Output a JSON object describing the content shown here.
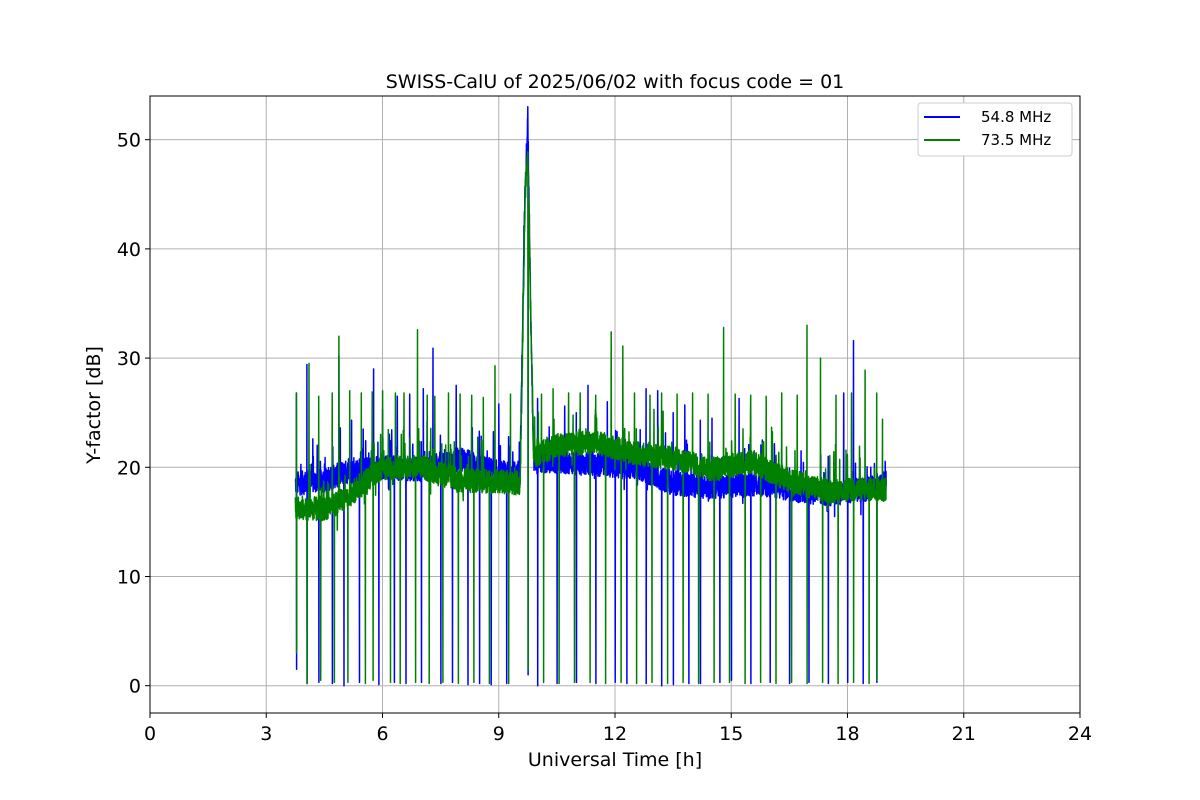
{
  "chart_data": {
    "type": "line",
    "title": "SWISS-CalU of 2025/06/02 with focus code = 01",
    "xlabel": "Universal Time [h]",
    "ylabel": "Y-factor [dB]",
    "xlim": [
      0,
      24
    ],
    "ylim": [
      -2.5,
      54
    ],
    "xticks": [
      0,
      3,
      6,
      9,
      12,
      15,
      18,
      21,
      24
    ],
    "yticks": [
      0,
      10,
      20,
      30,
      40,
      50
    ],
    "grid": true,
    "legend_position": "top-right",
    "colors": {
      "blue": "#0000ff",
      "green": "#008000"
    },
    "series": [
      {
        "name": "54.8 MHz",
        "color": "#0000ff",
        "baseline": [
          [
            3.75,
            18.5
          ],
          [
            4.5,
            18.8
          ],
          [
            5.0,
            19.5
          ],
          [
            5.5,
            19.8
          ],
          [
            6.0,
            20.0
          ],
          [
            7.0,
            19.8
          ],
          [
            8.0,
            20.8
          ],
          [
            9.0,
            19.5
          ],
          [
            9.55,
            19.5
          ],
          [
            9.6,
            29.7
          ],
          [
            9.68,
            46.0
          ],
          [
            9.75,
            51.6
          ],
          [
            9.82,
            35.0
          ],
          [
            9.9,
            20.5
          ],
          [
            10.5,
            20.5
          ],
          [
            11.5,
            20.3
          ],
          [
            12.5,
            20.0
          ],
          [
            13.5,
            18.5
          ],
          [
            14.5,
            18.2
          ],
          [
            15.5,
            18.5
          ],
          [
            16.5,
            18.0
          ],
          [
            17.5,
            17.5
          ],
          [
            18.5,
            18.0
          ],
          [
            19.0,
            18.6
          ]
        ],
        "spikes": [
          [
            3.78,
            26.8
          ],
          [
            4.05,
            29.4
          ],
          [
            4.2,
            22.6
          ],
          [
            4.5,
            20.3
          ],
          [
            4.87,
            30.2
          ],
          [
            5.2,
            24.3
          ],
          [
            5.5,
            23.5
          ],
          [
            5.77,
            29.0
          ],
          [
            6.0,
            25.3
          ],
          [
            6.38,
            26.5
          ],
          [
            6.7,
            26.7
          ],
          [
            7.05,
            27.2
          ],
          [
            7.3,
            30.9
          ],
          [
            7.6,
            21.6
          ],
          [
            7.9,
            27.5
          ],
          [
            8.3,
            25.5
          ],
          [
            8.7,
            21.5
          ],
          [
            9.0,
            25.8
          ],
          [
            9.25,
            22.8
          ],
          [
            10.0,
            26.3
          ],
          [
            10.3,
            23.7
          ],
          [
            10.7,
            25.6
          ],
          [
            11.0,
            25.0
          ],
          [
            11.3,
            27.5
          ],
          [
            11.8,
            26.0
          ],
          [
            12.2,
            24.0
          ],
          [
            12.8,
            27.2
          ],
          [
            13.1,
            27.0
          ],
          [
            13.5,
            25.0
          ],
          [
            13.8,
            25.7
          ],
          [
            14.2,
            24.3
          ],
          [
            14.5,
            24.5
          ],
          [
            15.2,
            26.3
          ],
          [
            15.8,
            22.5
          ],
          [
            16.3,
            22.0
          ],
          [
            16.8,
            21.5
          ],
          [
            17.5,
            21.0
          ],
          [
            17.9,
            26.8
          ],
          [
            18.15,
            31.6
          ],
          [
            18.6,
            20.0
          ]
        ],
        "drops": [
          [
            3.78,
            1.5
          ],
          [
            4.05,
            0.2
          ],
          [
            4.35,
            0.3
          ],
          [
            4.7,
            0.2
          ],
          [
            5.0,
            0.0
          ],
          [
            5.4,
            0.3
          ],
          [
            5.9,
            0.1
          ],
          [
            6.3,
            0.3
          ],
          [
            6.6,
            0.2
          ],
          [
            7.0,
            0.3
          ],
          [
            7.5,
            0.2
          ],
          [
            7.8,
            0.3
          ],
          [
            8.2,
            0.1
          ],
          [
            8.5,
            0.2
          ],
          [
            8.8,
            0.1
          ],
          [
            9.2,
            0.2
          ],
          [
            9.75,
            1.0
          ],
          [
            10.0,
            0.0
          ],
          [
            10.5,
            0.2
          ],
          [
            11.0,
            0.3
          ],
          [
            11.5,
            0.2
          ],
          [
            12.0,
            0.3
          ],
          [
            12.3,
            0.2
          ],
          [
            12.8,
            0.2
          ],
          [
            13.2,
            0.0
          ],
          [
            13.5,
            0.1
          ],
          [
            13.9,
            0.2
          ],
          [
            14.2,
            0.2
          ],
          [
            14.7,
            0.3
          ],
          [
            15.0,
            0.5
          ],
          [
            15.5,
            0.2
          ],
          [
            16.0,
            0.3
          ],
          [
            16.5,
            0.2
          ],
          [
            17.0,
            0.3
          ],
          [
            17.5,
            0.2
          ],
          [
            18.0,
            0.3
          ],
          [
            18.4,
            0.2
          ],
          [
            18.75,
            0.3
          ]
        ]
      },
      {
        "name": "73.5 MHz",
        "color": "#008000",
        "baseline": [
          [
            3.75,
            16.3
          ],
          [
            4.5,
            16.2
          ],
          [
            5.0,
            17.0
          ],
          [
            5.5,
            18.5
          ],
          [
            6.0,
            20.0
          ],
          [
            7.0,
            20.0
          ],
          [
            8.0,
            18.8
          ],
          [
            9.0,
            18.7
          ],
          [
            9.55,
            18.5
          ],
          [
            9.6,
            27.7
          ],
          [
            9.68,
            45.0
          ],
          [
            9.75,
            48.7
          ],
          [
            9.82,
            35.0
          ],
          [
            9.9,
            21.0
          ],
          [
            10.5,
            22.0
          ],
          [
            11.5,
            22.3
          ],
          [
            12.5,
            21.3
          ],
          [
            13.5,
            20.8
          ],
          [
            14.5,
            19.8
          ],
          [
            15.5,
            20.5
          ],
          [
            16.5,
            18.8
          ],
          [
            17.5,
            17.8
          ],
          [
            18.5,
            18.0
          ],
          [
            19.0,
            18.0
          ]
        ],
        "spikes": [
          [
            3.78,
            26.8
          ],
          [
            4.1,
            29.5
          ],
          [
            4.35,
            26.5
          ],
          [
            4.7,
            26.8
          ],
          [
            4.87,
            32.0
          ],
          [
            5.15,
            27.0
          ],
          [
            5.45,
            26.8
          ],
          [
            5.73,
            26.9
          ],
          [
            6.0,
            27.0
          ],
          [
            6.33,
            26.8
          ],
          [
            6.55,
            26.8
          ],
          [
            6.9,
            32.6
          ],
          [
            7.15,
            26.6
          ],
          [
            7.35,
            26.5
          ],
          [
            7.7,
            26.8
          ],
          [
            8.0,
            26.7
          ],
          [
            8.3,
            26.6
          ],
          [
            8.6,
            26.4
          ],
          [
            8.9,
            29.3
          ],
          [
            9.3,
            26.7
          ],
          [
            10.1,
            26.7
          ],
          [
            10.4,
            27.2
          ],
          [
            10.8,
            26.8
          ],
          [
            11.1,
            26.8
          ],
          [
            11.5,
            26.6
          ],
          [
            11.9,
            32.4
          ],
          [
            12.2,
            31.1
          ],
          [
            12.5,
            26.8
          ],
          [
            12.9,
            26.6
          ],
          [
            13.2,
            26.8
          ],
          [
            13.6,
            26.7
          ],
          [
            14.0,
            26.8
          ],
          [
            14.4,
            26.7
          ],
          [
            14.8,
            32.8
          ],
          [
            15.1,
            26.7
          ],
          [
            15.5,
            26.6
          ],
          [
            15.9,
            26.5
          ],
          [
            16.3,
            26.8
          ],
          [
            16.7,
            26.6
          ],
          [
            16.95,
            33.0
          ],
          [
            17.3,
            30.0
          ],
          [
            17.7,
            26.6
          ],
          [
            18.1,
            26.8
          ],
          [
            18.45,
            28.9
          ],
          [
            18.75,
            26.8
          ],
          [
            18.9,
            24.4
          ]
        ],
        "drops": [
          [
            3.78,
            3.0
          ],
          [
            4.05,
            0.2
          ],
          [
            4.4,
            0.5
          ],
          [
            4.75,
            0.3
          ],
          [
            5.1,
            0.3
          ],
          [
            5.55,
            0.2
          ],
          [
            5.75,
            0.5
          ],
          [
            6.2,
            0.3
          ],
          [
            6.45,
            0.2
          ],
          [
            6.85,
            0.3
          ],
          [
            7.2,
            0.2
          ],
          [
            7.55,
            0.3
          ],
          [
            7.95,
            0.2
          ],
          [
            8.35,
            0.3
          ],
          [
            8.75,
            0.2
          ],
          [
            9.25,
            0.2
          ],
          [
            9.75,
            1.5
          ],
          [
            10.15,
            0.3
          ],
          [
            10.55,
            0.2
          ],
          [
            10.95,
            0.3
          ],
          [
            11.35,
            0.3
          ],
          [
            11.75,
            0.2
          ],
          [
            12.15,
            0.3
          ],
          [
            12.55,
            0.2
          ],
          [
            12.95,
            0.3
          ],
          [
            13.35,
            0.2
          ],
          [
            13.75,
            0.3
          ],
          [
            14.15,
            0.2
          ],
          [
            14.55,
            0.3
          ],
          [
            14.95,
            0.3
          ],
          [
            15.35,
            0.2
          ],
          [
            15.75,
            0.3
          ],
          [
            16.15,
            0.2
          ],
          [
            16.55,
            0.3
          ],
          [
            16.95,
            0.2
          ],
          [
            17.35,
            0.3
          ],
          [
            17.75,
            0.2
          ],
          [
            18.15,
            0.3
          ],
          [
            18.55,
            0.2
          ],
          [
            18.75,
            0.5
          ]
        ]
      }
    ]
  }
}
